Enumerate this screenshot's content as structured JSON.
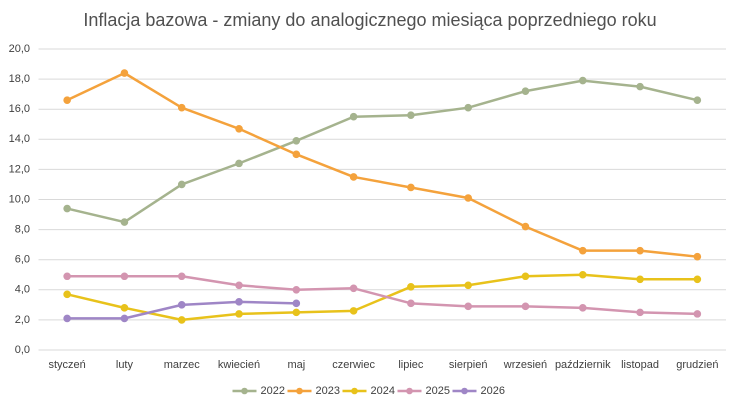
{
  "chart_data": {
    "type": "line",
    "title": "Inflacja bazowa - zmiany do analogicznego miesiąca poprzedniego roku",
    "categories": [
      "styczeń",
      "luty",
      "marzec",
      "kwiecień",
      "maj",
      "czerwiec",
      "lipiec",
      "sierpień",
      "wrzesień",
      "październik",
      "listopad",
      "grudzień"
    ],
    "series": [
      {
        "name": "2022",
        "color": "#a5b38e",
        "values": [
          9.4,
          8.5,
          11.0,
          12.4,
          13.9,
          15.5,
          15.6,
          16.1,
          17.2,
          17.9,
          17.5,
          16.6
        ]
      },
      {
        "name": "2023",
        "color": "#f4a23c",
        "values": [
          16.6,
          18.4,
          16.1,
          14.7,
          13.0,
          11.5,
          10.8,
          10.1,
          8.2,
          6.6,
          6.6,
          6.2
        ]
      },
      {
        "name": "2024",
        "color": "#e8c21b",
        "values": [
          3.7,
          2.8,
          2.0,
          2.4,
          2.5,
          2.6,
          4.2,
          4.3,
          4.9,
          5.0,
          4.7,
          4.7
        ]
      },
      {
        "name": "2025",
        "color": "#d395b0",
        "values": [
          4.9,
          4.9,
          4.9,
          4.3,
          4.0,
          4.1,
          3.1,
          2.9,
          2.9,
          2.8,
          2.5,
          2.4
        ]
      },
      {
        "name": "2026",
        "color": "#9f86c6",
        "values": [
          2.1,
          2.1,
          3.0,
          3.2,
          3.1,
          null,
          null,
          null,
          null,
          null,
          null,
          null
        ]
      }
    ],
    "ylim": [
      0,
      20
    ],
    "yticks": [
      {
        "value": 0,
        "label": "0,0"
      },
      {
        "value": 2,
        "label": "2,0"
      },
      {
        "value": 4,
        "label": "4,0"
      },
      {
        "value": 6,
        "label": "6,0"
      },
      {
        "value": 8,
        "label": "8,0"
      },
      {
        "value": 10,
        "label": "10,0"
      },
      {
        "value": 12,
        "label": "12,0"
      },
      {
        "value": 14,
        "label": "14,0"
      },
      {
        "value": 16,
        "label": "16,0"
      },
      {
        "value": 18,
        "label": "18,0"
      },
      {
        "value": 20,
        "label": "20,0"
      }
    ],
    "grid": true,
    "legend": "bottom"
  }
}
